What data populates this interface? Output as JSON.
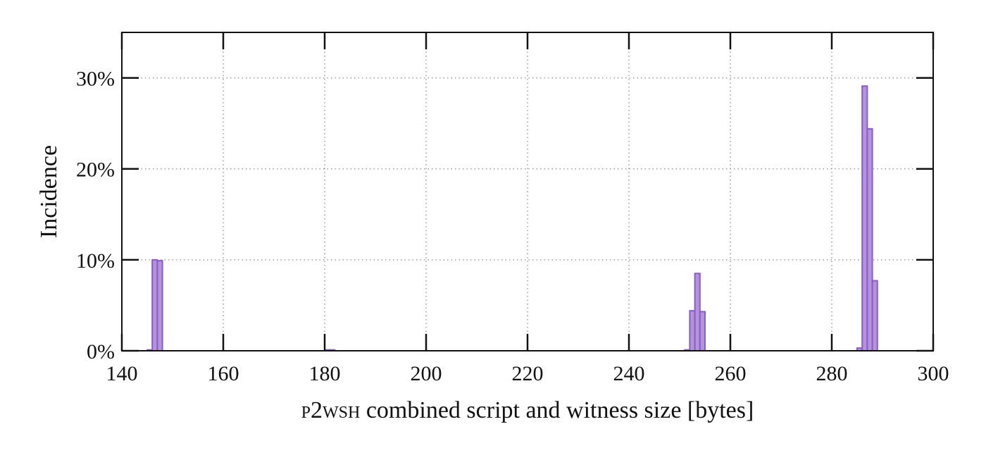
{
  "chart_data": {
    "type": "bar",
    "title": "",
    "xlabel": "P2WSH combined script and witness size [bytes]",
    "xlabel_smallcaps_prefix": "p2wsh",
    "xlabel_rest": " combined script and witness size [bytes]",
    "ylabel": "Incidence",
    "xlim": [
      140,
      300
    ],
    "ylim": [
      0,
      35
    ],
    "grid": true,
    "legend": null,
    "x_ticks": [
      140,
      160,
      180,
      200,
      220,
      240,
      260,
      280,
      300
    ],
    "x_tick_labels": [
      "140",
      "160",
      "180",
      "200",
      "220",
      "240",
      "260",
      "280",
      "300"
    ],
    "y_ticks": [
      0,
      10,
      20,
      30
    ],
    "y_tick_labels": [
      "0%",
      "10%",
      "20%",
      "30%"
    ],
    "bin_width": 1,
    "bins": [
      {
        "x": 145,
        "value": 0.1
      },
      {
        "x": 146,
        "value": 10.0
      },
      {
        "x": 147,
        "value": 9.9
      },
      {
        "x": 180,
        "value": 0.1
      },
      {
        "x": 181,
        "value": 0.1
      },
      {
        "x": 251,
        "value": 0.1
      },
      {
        "x": 252,
        "value": 4.4
      },
      {
        "x": 253,
        "value": 8.5
      },
      {
        "x": 254,
        "value": 4.3
      },
      {
        "x": 285,
        "value": 0.3
      },
      {
        "x": 286,
        "value": 29.1
      },
      {
        "x": 287,
        "value": 24.4
      },
      {
        "x": 288,
        "value": 7.7
      }
    ],
    "colors": {
      "bar_fill": "#b394dc",
      "bar_edge": "#8a5cc7",
      "grid": "#9e9e9e",
      "axis": "#111111"
    }
  }
}
